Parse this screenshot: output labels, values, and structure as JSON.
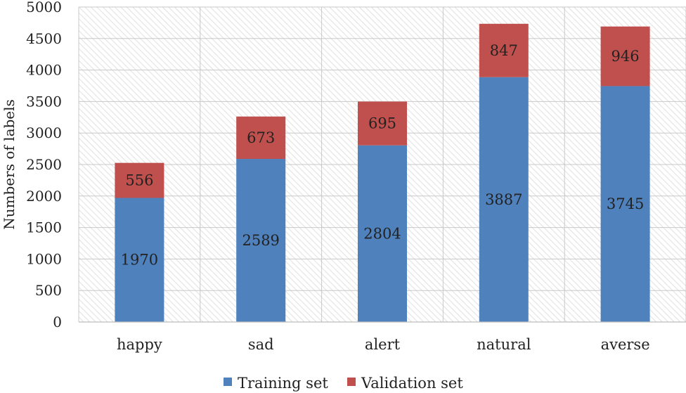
{
  "chart_data": {
    "type": "bar",
    "stacked": true,
    "categories": [
      "happy",
      "sad",
      "alert",
      "natural",
      "averse"
    ],
    "series": [
      {
        "name": "Training set",
        "values": [
          1970,
          2589,
          2804,
          3887,
          3745
        ],
        "color": "#4f81bd"
      },
      {
        "name": "Validation set",
        "values": [
          556,
          673,
          695,
          847,
          946
        ],
        "color": "#c0504d"
      }
    ],
    "ylabel": "Numbers of labels",
    "ylim": [
      0,
      5000
    ],
    "yticks": [
      0,
      500,
      1000,
      1500,
      2000,
      2500,
      3000,
      3500,
      4000,
      4500,
      5000
    ],
    "grid": true,
    "legend_position": "bottom"
  }
}
